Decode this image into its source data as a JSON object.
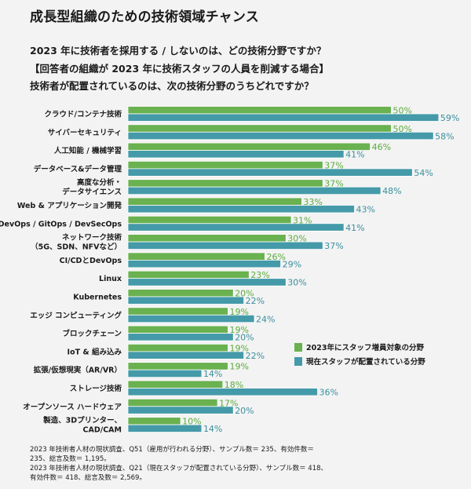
{
  "page": {
    "title": "成長型組織のための技術領域チャンス",
    "questions": [
      "2023 年に技術者を採用する / しないのは、どの技術分野ですか？",
      "【回答者の組織が 2023 年に技術スタッフの人員を削減する場合】",
      "技術者が配置されているのは、次の技術分野のうちどれですか？"
    ],
    "footnotes": [
      "2023 年技術者人材の現状調査、Q51（雇用が行われる分野）、サンプル数＝ 235、有効件数＝ 235、総言及数＝ 1,195。",
      "2023 年技術者人材の現状調査、Q21（現在スタッフが配置されている分野）、サンプル数＝ 418、有効件数＝ 418、総言及数＝ 2,569。"
    ]
  },
  "chart_data": {
    "type": "bar",
    "orientation": "horizontal",
    "title": "成長型組織のための技術領域チャンス",
    "xlabel": "",
    "ylabel": "",
    "xlim": [
      0,
      100
    ],
    "unit": "%",
    "grid": false,
    "legend_position": "right",
    "categories": [
      [
        "クラウド/コンテナ技術"
      ],
      [
        "サイバーセキュリティ"
      ],
      [
        "人工知能 / 機械学習"
      ],
      [
        "データベース&データ管理"
      ],
      [
        "高度な分析・",
        "データサイエンス"
      ],
      [
        "Web & アプリケーション開発"
      ],
      [
        "DevOps / GitOps / DevSecOps"
      ],
      [
        "ネットワーク技術",
        "（5G、SDN、NFVなど）"
      ],
      [
        "CI/CDとDevOps"
      ],
      [
        "Linux"
      ],
      [
        "Kubernetes"
      ],
      [
        "エッジ コンピューティング"
      ],
      [
        "ブロックチェーン"
      ],
      [
        "IoT & 組み込み"
      ],
      [
        "拡張/仮想現実（AR/VR）"
      ],
      [
        "ストレージ技術"
      ],
      [
        "オープンソース ハードウェア"
      ],
      [
        "製造、3Dプリンター、",
        "CAD/CAM"
      ]
    ],
    "series": [
      {
        "name": "2023年にスタッフ増員対象の分野",
        "color": "#6ab150",
        "label_color": "#5aab3c",
        "values": [
          50,
          50,
          46,
          37,
          37,
          33,
          31,
          30,
          26,
          23,
          20,
          19,
          19,
          19,
          19,
          18,
          17,
          10
        ]
      },
      {
        "name": "現在スタッフが配置されている分野",
        "color": "#449aa8",
        "label_color": "#3a8f9e",
        "values": [
          59,
          58,
          41,
          54,
          48,
          43,
          41,
          37,
          29,
          30,
          22,
          24,
          20,
          22,
          14,
          36,
          20,
          14
        ]
      }
    ]
  }
}
